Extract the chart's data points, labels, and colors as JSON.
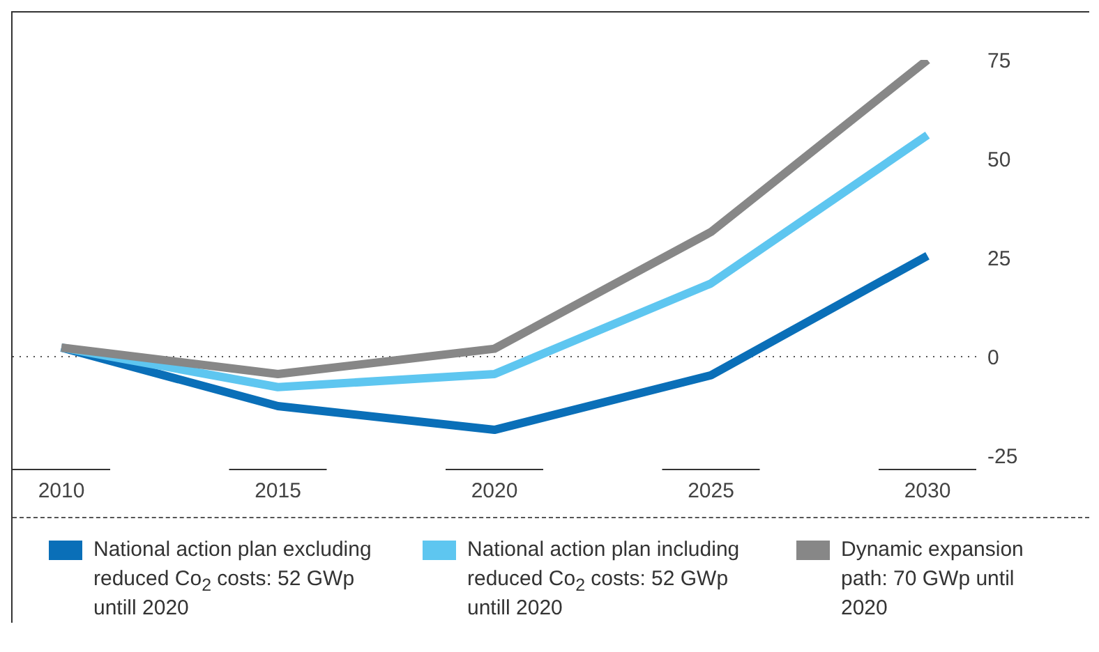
{
  "chart_data": {
    "type": "line",
    "categories": [
      "2010",
      "2015",
      "2020",
      "2025",
      "2030"
    ],
    "series": [
      {
        "name": "National action plan excluding reduced Co$_{2}$ costs: 52 GWp untill 2020",
        "color": "#0a6fb8",
        "values": [
          2.3,
          -12.5,
          -18.5,
          -4.7,
          25.5
        ]
      },
      {
        "name": "National action plan including reduced Co$_{2}$ costs: 52 GWp untill 2020",
        "color": "#5ec6f0",
        "values": [
          2.3,
          -7.7,
          -4.4,
          18.5,
          56
        ]
      },
      {
        "name": "Dynamic expansion path: 70 GWp until 2020",
        "color": "#878787",
        "values": [
          2.3,
          -4.4,
          2,
          31.5,
          75
        ]
      }
    ],
    "ylim": [
      -25,
      75
    ],
    "yticks": [
      -25,
      0,
      25,
      50,
      75
    ],
    "grid": false,
    "legend": "bottom",
    "marker": "none",
    "line_style": "solid",
    "ref_lines": [
      {
        "axis": "y",
        "value": 0,
        "line_style": "dotted",
        "color": "#555555"
      }
    ]
  }
}
